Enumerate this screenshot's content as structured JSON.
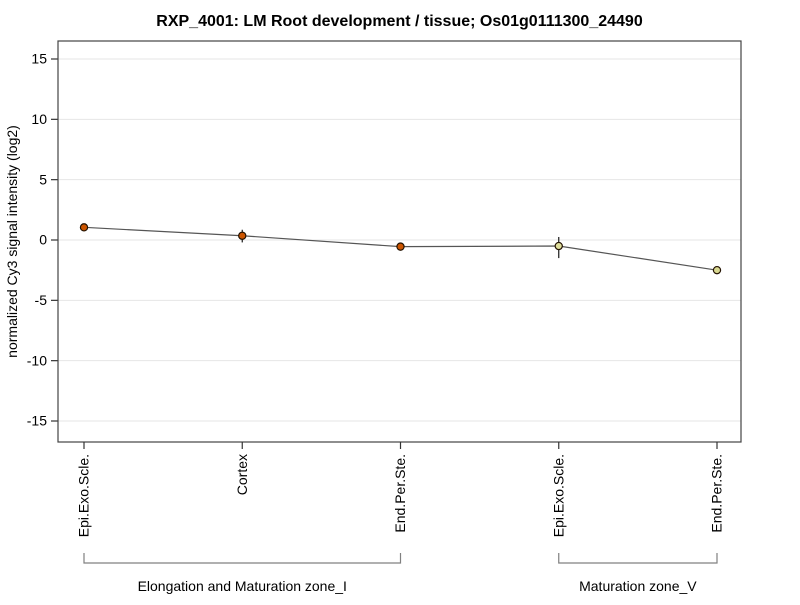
{
  "title": "RXP_4001: LM Root development / tissue; Os01g0111300_24490",
  "chart_data": {
    "type": "line",
    "title": "RXP_4001: LM Root development / tissue; Os01g0111300_24490",
    "ylabel": "normalized Cy3 signal intensity (log2)",
    "categories": [
      "Epi.Exo.Scle.",
      "Cortex",
      "End.Per.Ste.",
      "Epi.Exo.Scle.",
      "End.Per.Ste."
    ],
    "values": [
      1.05,
      0.35,
      -0.55,
      -0.5,
      -2.5
    ],
    "error_bars": [
      null,
      [
        -0.2,
        0.85
      ],
      null,
      [
        -1.5,
        0.25
      ],
      null
    ],
    "point_colors": [
      "#cc5500",
      "#cc5500",
      "#cc5500",
      "#dede9c",
      "#d8d890"
    ],
    "yticks": [
      15,
      10,
      5,
      0,
      -5,
      -10,
      -15
    ],
    "ylim": [
      -16.7,
      16.5
    ],
    "grid": true,
    "legend_position": "none",
    "groups": [
      {
        "label": "Elongation and Maturation zone_I",
        "from": 0,
        "to": 2
      },
      {
        "label": "Maturation zone_V",
        "from": 3,
        "to": 4
      }
    ]
  },
  "colors": {
    "line": "#555555",
    "grid": "#e6e6e6",
    "box": "#434343",
    "tick": "#333333",
    "bracket": "#808080",
    "error_bar": "#1a1a1a",
    "point_stroke": "#221100",
    "background": "#ffffff",
    "text": "#000000"
  }
}
